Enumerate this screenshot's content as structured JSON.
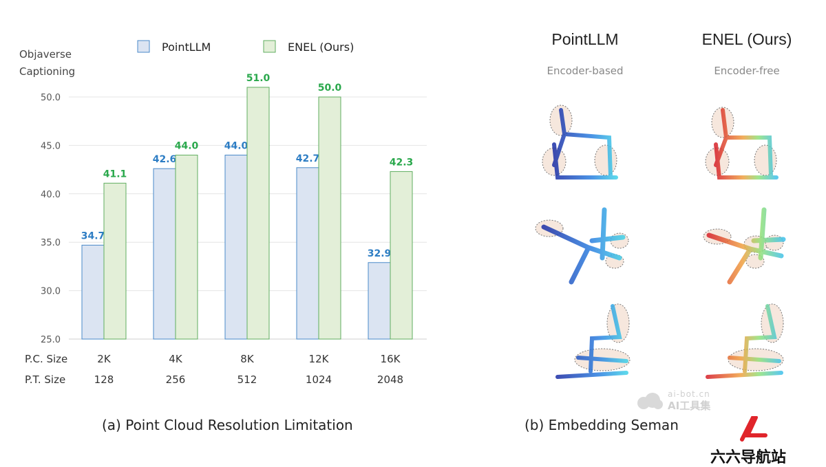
{
  "chart_data": {
    "type": "bar",
    "ylabel": [
      "Objaverse",
      "Captioning"
    ],
    "ylim": [
      25,
      53
    ],
    "yticks": [
      "50.0",
      "45.0",
      "40.0",
      "35.0",
      "30.0",
      "25.0"
    ],
    "ytick_values": [
      50,
      45,
      40,
      35,
      30,
      25
    ],
    "row_labels": [
      "P.C. Size",
      "P.T. Size"
    ],
    "categories": [
      "2K",
      "4K",
      "8K",
      "12K",
      "16K"
    ],
    "categories_row2": [
      "128",
      "256",
      "512",
      "1024",
      "2048"
    ],
    "series": [
      {
        "name": "PointLLM",
        "values": [
          34.7,
          42.6,
          44.0,
          42.7,
          32.9
        ],
        "color": "#dbe4f2",
        "border": "#4a8ac9",
        "label_color": "#2d7dc4"
      },
      {
        "name": "ENEL (Ours)",
        "values": [
          41.1,
          44.0,
          51.0,
          50.0,
          42.3
        ],
        "color": "#e3efd8",
        "border": "#5fae5f",
        "label_color": "#2aa84c"
      }
    ],
    "data_labels": [
      [
        "34.7",
        "42.6",
        "44.0",
        "42.7",
        "32.9"
      ],
      [
        "41.1",
        "44.0",
        "51.0",
        "50.0",
        "42.3"
      ]
    ],
    "grid": true,
    "legend": "top"
  },
  "caption_a": "(a) Point Cloud Resolution Limitation",
  "caption_b": "(b) Embedding Seman",
  "panel_b": {
    "col1_title": "PointLLM",
    "col1_sub": "Encoder-based",
    "col2_title": "ENEL (Ours)",
    "col2_sub": "Encoder-free"
  },
  "watermark": {
    "line1": "ai-bot.cn",
    "line2": "AI工具集",
    "brand": "六六导航站"
  },
  "colors": {
    "blue_points": "#1f3fae",
    "red_points": "#d9261f",
    "highlight": "#f6e7dd"
  }
}
